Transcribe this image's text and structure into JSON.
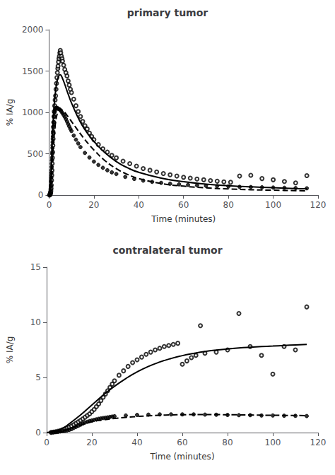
{
  "chart_data": [
    {
      "type": "scatter",
      "title": "primary tumor",
      "xlabel": "Time (minutes)",
      "ylabel": "% IA/g",
      "xlim": [
        0,
        120
      ],
      "xticks": [
        0,
        20,
        40,
        60,
        80,
        100,
        120
      ],
      "ylim": [
        0,
        2000
      ],
      "yticks": [
        0,
        500,
        1000,
        1500,
        2000
      ],
      "grid": false,
      "series": [
        {
          "type": "scatter",
          "marker": "open_circle",
          "color": "#000000",
          "x": [
            0.2,
            0.4,
            0.5,
            0.6,
            0.7,
            0.8,
            0.9,
            1.0,
            1.1,
            1.2,
            1.3,
            1.4,
            1.5,
            1.6,
            1.7,
            1.8,
            1.9,
            2.0,
            2.1,
            2.2,
            2.3,
            2.5,
            2.7,
            2.9,
            3.1,
            3.3,
            3.5,
            3.7,
            3.9,
            4.0,
            4.2,
            4.4,
            4.6,
            4.8,
            5.0,
            5.2,
            5.5,
            5.8,
            6.0,
            6.5,
            7.0,
            7.5,
            8.0,
            8.5,
            9.0,
            9.5,
            10.0,
            11.0,
            12.0,
            13.0,
            14.0,
            15.0,
            16.0,
            17.0,
            18.0,
            19.0,
            20.0,
            22.0,
            24.0,
            26.0,
            28.0,
            30.0,
            33.0,
            36.0,
            39.0,
            42.0,
            45.0,
            48.0,
            51.0,
            54.0,
            57.0,
            60.0,
            63.0,
            66.0,
            69.0,
            72.0,
            75.0,
            78.0,
            81.0,
            85.0,
            90.0,
            95.0,
            100.0,
            105.0,
            110.0,
            115.0
          ],
          "values": [
            0,
            5,
            10,
            20,
            30,
            50,
            80,
            120,
            180,
            240,
            300,
            380,
            450,
            520,
            600,
            680,
            750,
            820,
            880,
            950,
            1010,
            1080,
            1150,
            1200,
            1280,
            1350,
            1420,
            1480,
            1530,
            1560,
            1610,
            1650,
            1680,
            1720,
            1750,
            1720,
            1680,
            1650,
            1620,
            1570,
            1520,
            1480,
            1440,
            1380,
            1330,
            1280,
            1240,
            1160,
            1080,
            1010,
            950,
            890,
            840,
            800,
            750,
            710,
            670,
            610,
            560,
            520,
            480,
            450,
            410,
            380,
            350,
            320,
            300,
            280,
            260,
            245,
            230,
            215,
            205,
            195,
            185,
            175,
            168,
            160,
            155,
            230,
            240,
            200,
            185,
            165,
            148,
            235
          ]
        },
        {
          "type": "scatter",
          "marker": "circle",
          "color": "#000000",
          "x": [
            0.3,
            0.4,
            0.5,
            0.6,
            0.7,
            0.8,
            0.9,
            1.0,
            1.1,
            1.2,
            1.3,
            1.4,
            1.5,
            1.6,
            1.7,
            1.8,
            1.9,
            2.0,
            2.2,
            2.4,
            2.6,
            2.8,
            3.0,
            3.2,
            3.5,
            3.8,
            4.0,
            4.5,
            5.0,
            5.5,
            6.0,
            6.5,
            7.0,
            7.5,
            8.0,
            8.5,
            9.0,
            9.5,
            10.0,
            11.0,
            12.0,
            13.0,
            14.0,
            16.0,
            18.0,
            20.0,
            22.0,
            24.0,
            26.0,
            28.0,
            30.0,
            34.0,
            38.0,
            42.0,
            46.0,
            50.0,
            54.0,
            58.0,
            62.0,
            66.0,
            70.0,
            75.0,
            80.0,
            85.0,
            90.0,
            95.0,
            100.0,
            105.0,
            110.0,
            115.0
          ],
          "values": [
            5,
            10,
            20,
            40,
            70,
            110,
            160,
            210,
            270,
            340,
            420,
            500,
            570,
            640,
            710,
            770,
            830,
            880,
            950,
            1000,
            1020,
            1040,
            1050,
            1055,
            1055,
            1050,
            1045,
            1040,
            1030,
            1010,
            990,
            970,
            945,
            920,
            890,
            860,
            830,
            800,
            775,
            720,
            670,
            625,
            580,
            510,
            455,
            405,
            365,
            330,
            300,
            275,
            255,
            220,
            195,
            175,
            160,
            148,
            138,
            130,
            124,
            118,
            112,
            108,
            104,
            100,
            97,
            94,
            91,
            88,
            85,
            82
          ]
        },
        {
          "type": "line",
          "line_style": "solid",
          "color": "#000000",
          "x": [
            0.0,
            0.5,
            1.0,
            1.5,
            2.0,
            2.5,
            3.0,
            3.5,
            4.0,
            4.5,
            5.0,
            5.5,
            6.0,
            7.0,
            8.0,
            9.0,
            10.0,
            12.0,
            14.0,
            16.0,
            18.0,
            20.0,
            25.0,
            30.0,
            35.0,
            40.0,
            50.0,
            60.0,
            70.0,
            80.0,
            90.0,
            100.0,
            110.0,
            115.0
          ],
          "values": [
            0,
            80,
            310,
            700,
            980,
            1150,
            1280,
            1370,
            1420,
            1450,
            1455,
            1440,
            1410,
            1340,
            1260,
            1185,
            1115,
            990,
            880,
            790,
            715,
            650,
            510,
            405,
            330,
            275,
            205,
            162,
            133,
            114,
            100,
            89,
            80,
            77
          ]
        },
        {
          "type": "line",
          "line_style": "dashed",
          "color": "#000000",
          "x": [
            0.0,
            0.5,
            1.0,
            1.5,
            2.0,
            2.5,
            3.0,
            3.5,
            4.0,
            4.5,
            5.0,
            5.5,
            6.0,
            7.0,
            8.0,
            9.0,
            10.0,
            12.0,
            14.0,
            16.0,
            18.0,
            20.0,
            25.0,
            30.0,
            35.0,
            40.0,
            50.0,
            60.0,
            70.0,
            80.0,
            90.0,
            100.0,
            110.0,
            115.0
          ],
          "values": [
            0,
            40,
            170,
            420,
            640,
            790,
            900,
            970,
            1010,
            1030,
            1040,
            1035,
            1025,
            1000,
            965,
            930,
            890,
            815,
            740,
            670,
            605,
            545,
            415,
            320,
            250,
            200,
            140,
            108,
            87,
            74,
            65,
            59,
            54,
            52
          ]
        }
      ]
    },
    {
      "type": "scatter",
      "title": "contralateral tumor",
      "xlabel": "Time (minutes)",
      "ylabel": "% IA/g",
      "xlim": [
        0,
        120
      ],
      "xticks": [
        0,
        20,
        40,
        60,
        80,
        100,
        120
      ],
      "ylim": [
        0,
        15
      ],
      "yticks": [
        0,
        5,
        10,
        15
      ],
      "grid": false,
      "series": [
        {
          "type": "scatter",
          "marker": "open_circle",
          "color": "#000000",
          "x": [
            2.0,
            3.0,
            4.0,
            5.0,
            6.0,
            7.0,
            8.0,
            9.0,
            10.0,
            11.0,
            12.0,
            13.0,
            14.0,
            15.0,
            16.0,
            17.0,
            18.0,
            19.0,
            20.0,
            21.0,
            22.0,
            23.0,
            24.0,
            25.0,
            26.0,
            27.0,
            28.0,
            29.0,
            30.0,
            32.0,
            34.0,
            36.0,
            38.0,
            40.0,
            42.0,
            44.0,
            46.0,
            48.0,
            50.0,
            52.0,
            54.0,
            56.0,
            58.0,
            60.0,
            62.0,
            64.0,
            66.0,
            68.0,
            70.0,
            75.0,
            80.0,
            85.0,
            90.0,
            95.0,
            100.0,
            105.0,
            110.0,
            115.0
          ],
          "values": [
            0.02,
            0.05,
            0.08,
            0.12,
            0.18,
            0.25,
            0.32,
            0.4,
            0.5,
            0.6,
            0.72,
            0.85,
            0.98,
            1.1,
            1.25,
            1.4,
            1.55,
            1.7,
            1.9,
            2.1,
            2.35,
            2.6,
            2.9,
            3.2,
            3.5,
            3.8,
            4.1,
            4.4,
            4.7,
            5.2,
            5.6,
            6.0,
            6.35,
            6.6,
            6.85,
            7.1,
            7.3,
            7.5,
            7.65,
            7.8,
            7.9,
            8.0,
            8.1,
            6.2,
            6.5,
            6.8,
            7.0,
            9.7,
            7.2,
            7.3,
            7.5,
            10.8,
            7.8,
            7.0,
            5.3,
            7.8,
            7.5,
            11.4
          ]
        },
        {
          "type": "scatter",
          "marker": "circle",
          "color": "#000000",
          "x": [
            2.0,
            3.0,
            4.0,
            5.0,
            6.0,
            7.0,
            8.0,
            9.0,
            10.0,
            11.0,
            12.0,
            13.0,
            14.0,
            15.0,
            16.0,
            17.0,
            18.0,
            19.0,
            20.0,
            21.0,
            22.0,
            23.0,
            24.0,
            25.0,
            26.0,
            27.0,
            28.0,
            29.0,
            30.0,
            35.0,
            40.0,
            45.0,
            50.0,
            55.0,
            60.0,
            65.0,
            70.0,
            75.0,
            80.0,
            85.0,
            90.0,
            95.0,
            100.0,
            105.0,
            110.0,
            115.0
          ],
          "values": [
            0.02,
            0.04,
            0.06,
            0.08,
            0.1,
            0.13,
            0.16,
            0.2,
            0.25,
            0.32,
            0.42,
            0.52,
            0.62,
            0.72,
            0.82,
            0.92,
            0.98,
            1.05,
            1.1,
            1.15,
            1.2,
            1.25,
            1.28,
            1.32,
            1.35,
            1.38,
            1.42,
            1.45,
            1.48,
            1.55,
            1.6,
            1.63,
            1.65,
            1.65,
            1.65,
            1.65,
            1.63,
            1.62,
            1.6,
            1.58,
            1.58,
            1.55,
            1.55,
            1.53,
            1.52,
            1.5
          ]
        },
        {
          "type": "line",
          "line_style": "solid",
          "color": "#000000",
          "x": [
            0,
            2,
            5,
            8,
            10,
            15,
            20,
            25,
            30,
            35,
            40,
            45,
            50,
            55,
            60,
            65,
            70,
            75,
            80,
            85,
            90,
            95,
            100,
            105,
            110,
            115
          ],
          "values": [
            0,
            0.05,
            0.2,
            0.5,
            0.8,
            1.6,
            2.5,
            3.4,
            4.2,
            4.9,
            5.5,
            6.0,
            6.4,
            6.72,
            6.98,
            7.18,
            7.35,
            7.48,
            7.58,
            7.67,
            7.74,
            7.8,
            7.85,
            7.9,
            7.95,
            8.0
          ]
        },
        {
          "type": "line",
          "line_style": "dashed",
          "color": "#000000",
          "x": [
            0,
            2,
            5,
            8,
            10,
            15,
            20,
            25,
            30,
            35,
            40,
            45,
            50,
            55,
            60,
            65,
            70,
            75,
            80,
            85,
            90,
            95,
            100,
            105,
            110,
            115
          ],
          "values": [
            0,
            0.03,
            0.1,
            0.22,
            0.35,
            0.68,
            0.98,
            1.15,
            1.28,
            1.38,
            1.46,
            1.52,
            1.57,
            1.6,
            1.62,
            1.63,
            1.63,
            1.63,
            1.62,
            1.61,
            1.6,
            1.58,
            1.57,
            1.56,
            1.55,
            1.54
          ]
        }
      ]
    }
  ]
}
